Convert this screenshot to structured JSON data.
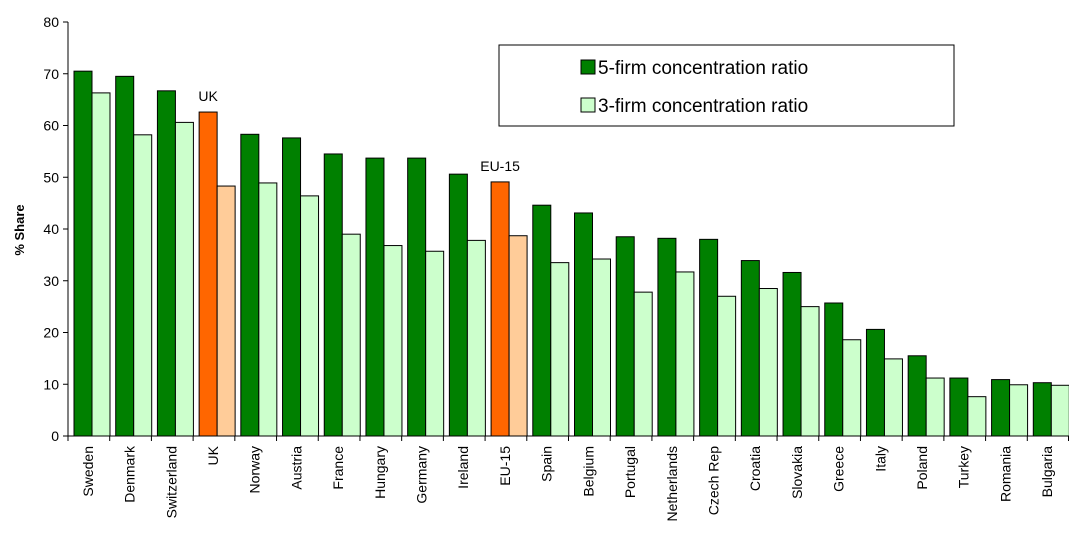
{
  "chart_data": {
    "type": "bar",
    "title": "",
    "xlabel": "",
    "ylabel": "% Share",
    "ylim": [
      0,
      80
    ],
    "yticks": [
      0,
      10,
      20,
      30,
      40,
      50,
      60,
      70,
      80
    ],
    "grid": false,
    "legend_position": "top-right",
    "categories": [
      "Sweden",
      "Denmark",
      "Switzerland",
      "UK",
      "Norway",
      "Austria",
      "France",
      "Hungary",
      "Germany",
      "Ireland",
      "EU-15",
      "Spain",
      "Belgium",
      "Portugal",
      "Netherlands",
      "Czech Rep",
      "Croatia",
      "Slovakia",
      "Greece",
      "Italy",
      "Poland",
      "Turkey",
      "Romania",
      "Bulgaria"
    ],
    "series": [
      {
        "name": "5-firm concentration ratio",
        "color": "#008000",
        "highlight_color": "#ff6600",
        "values": [
          70.5,
          69.5,
          66.7,
          62.6,
          58.3,
          57.6,
          54.5,
          53.7,
          53.7,
          50.6,
          49.1,
          44.6,
          43.1,
          38.5,
          38.2,
          38.0,
          33.9,
          31.6,
          25.7,
          20.6,
          15.5,
          11.2,
          10.9,
          10.3
        ]
      },
      {
        "name": "3-firm concentration ratio",
        "color": "#ccffcc",
        "highlight_color": "#ffcc99",
        "values": [
          66.3,
          58.2,
          60.6,
          48.3,
          48.9,
          46.4,
          39.0,
          36.8,
          35.7,
          37.8,
          38.7,
          33.5,
          34.2,
          27.8,
          31.7,
          27.0,
          28.5,
          25.0,
          18.6,
          14.9,
          11.2,
          7.6,
          9.9,
          9.8
        ]
      }
    ],
    "highlighted_categories": [
      "UK",
      "EU-15"
    ],
    "annotations": [
      {
        "category": "UK",
        "text": "UK"
      },
      {
        "category": "EU-15",
        "text": "EU-15"
      }
    ]
  }
}
